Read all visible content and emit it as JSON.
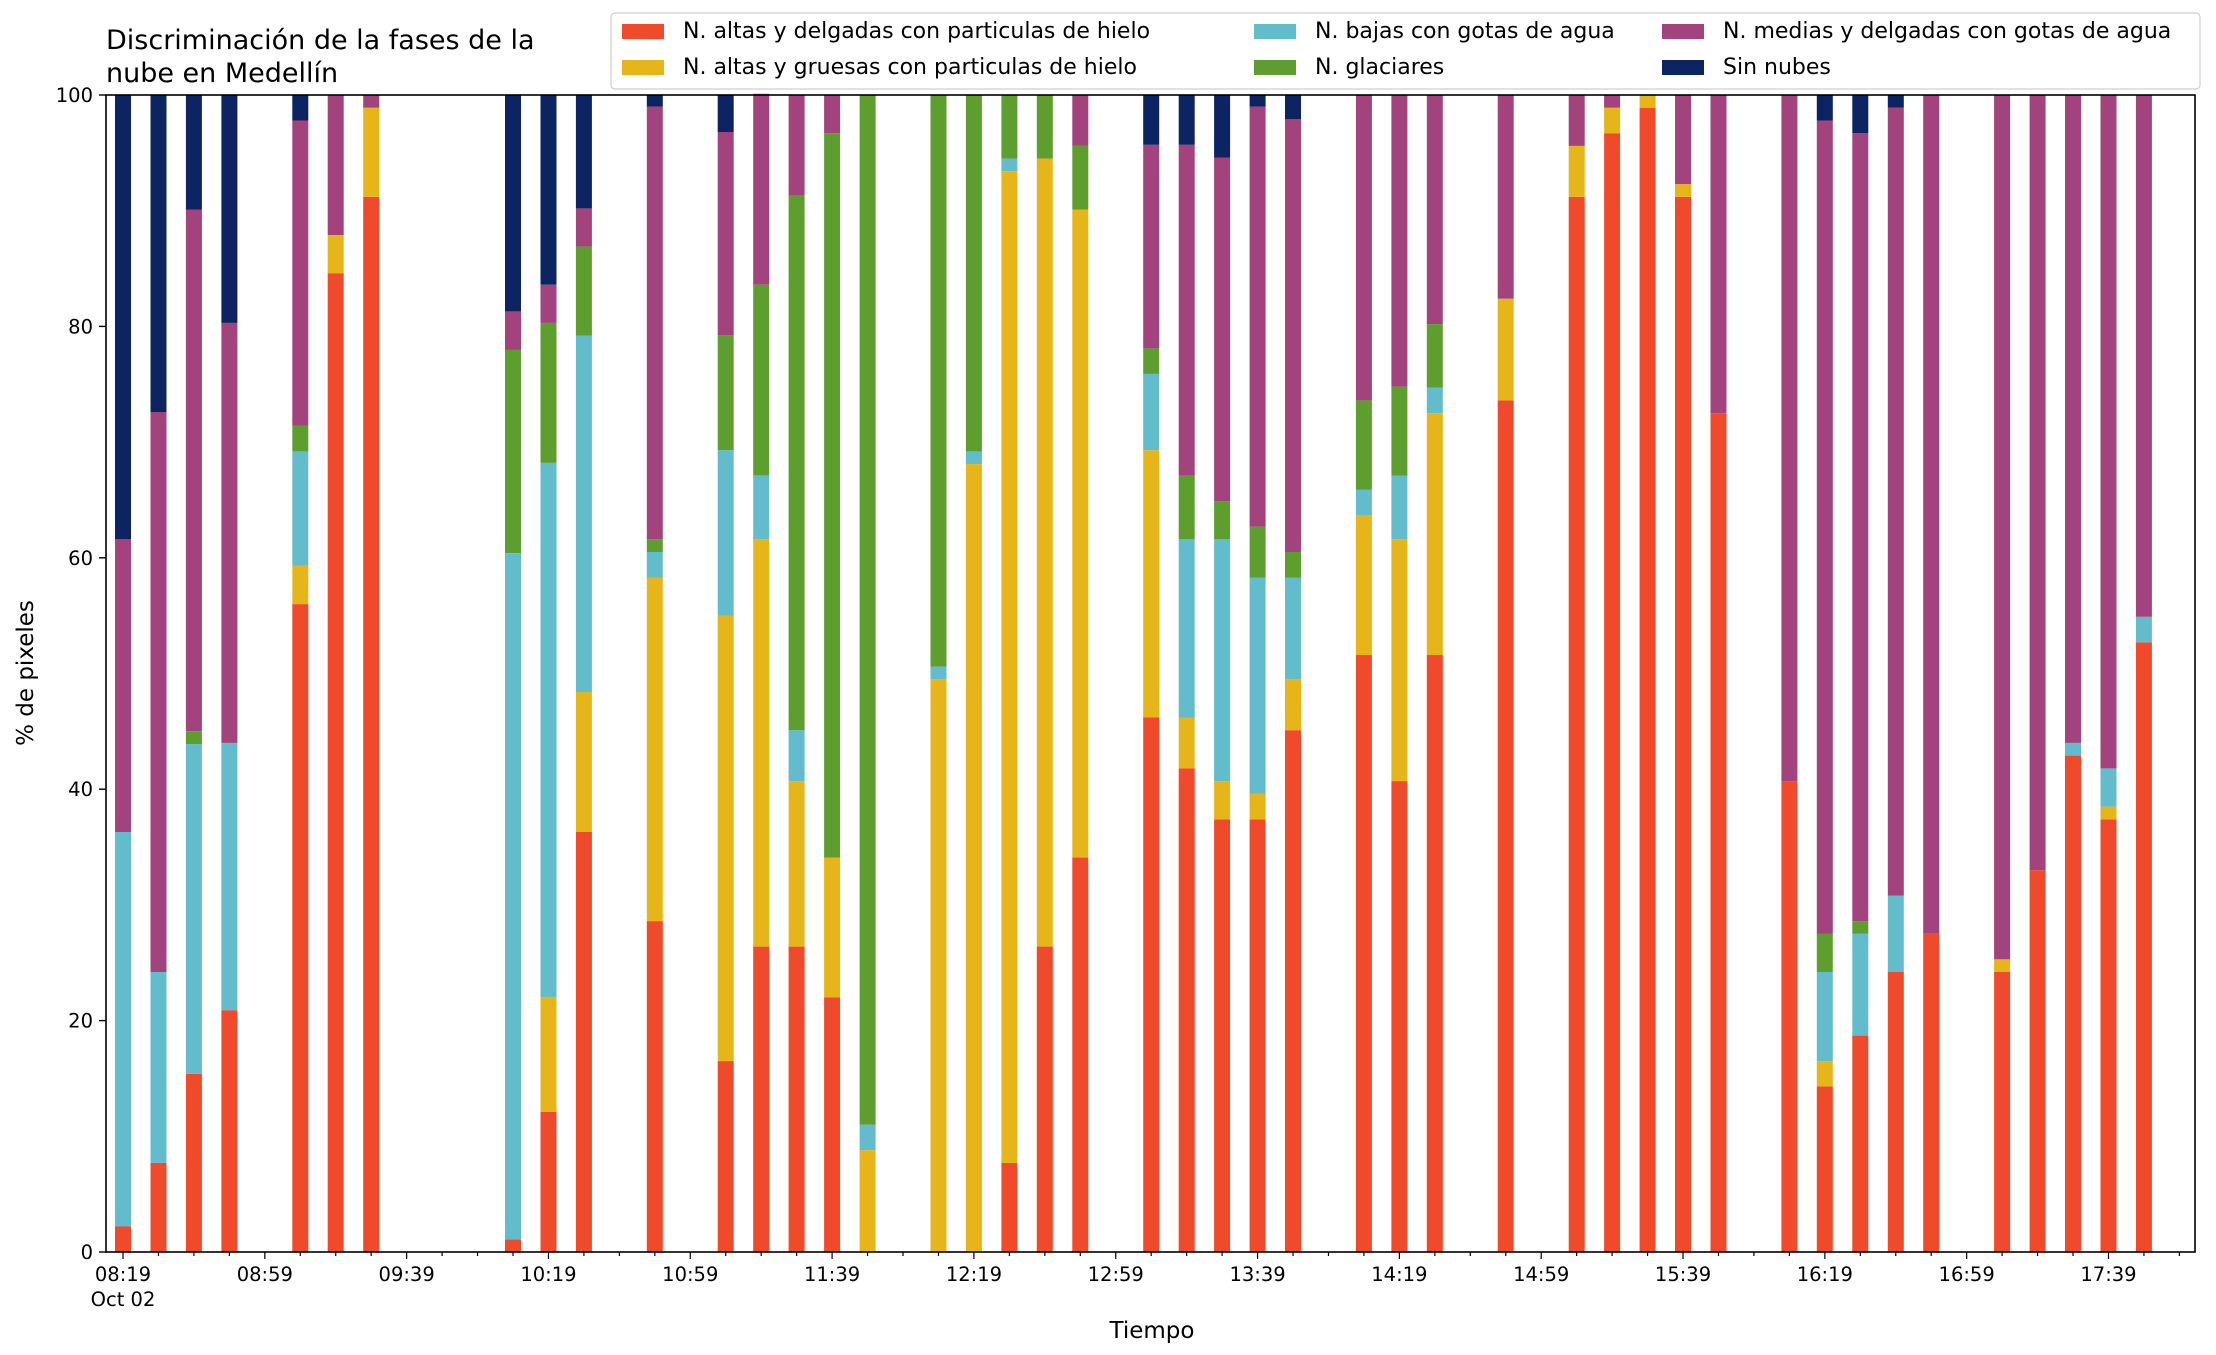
{
  "chart_data": {
    "type": "bar",
    "stacked": true,
    "title_lines": [
      "Discriminación de la fases de la",
      "nube en Medellín"
    ],
    "xlabel": "Tiempo",
    "ylabel": "% de pixeles",
    "ylim": [
      0,
      100
    ],
    "yticks": [
      0,
      20,
      40,
      60,
      80,
      100
    ],
    "x_range_minutes": [
      "08:19",
      "17:49"
    ],
    "x_tick_step_minutes": 10,
    "x_tick_labels": [
      "08:19",
      "08:59",
      "09:39",
      "10:19",
      "10:59",
      "11:39",
      "12:19",
      "12:59",
      "13:39",
      "14:19",
      "14:59",
      "15:39",
      "16:19",
      "16:59",
      "17:39"
    ],
    "x_date_label": "Oct 02",
    "grid": false,
    "legend_position": "top-right",
    "series": [
      {
        "name": "N. altas y delgadas con particulas de hielo",
        "color": "#ee4a2b"
      },
      {
        "name": "N. altas y gruesas con particulas de hielo",
        "color": "#e5b51a"
      },
      {
        "name": "N. bajas con gotas de agua",
        "color": "#63bccb"
      },
      {
        "name": "N. glaciares",
        "color": "#5e9e2e"
      },
      {
        "name": "N. medias y delgadas con gotas de agua",
        "color": "#a2437e"
      },
      {
        "name": "Sin nubes",
        "color": "#0c2462"
      }
    ],
    "bars": [
      {
        "time": "08:19",
        "values": [
          2.2,
          0,
          34.1,
          0,
          25.3,
          38.4
        ]
      },
      {
        "time": "08:29",
        "values": [
          7.7,
          0,
          16.5,
          0,
          48.4,
          27.4
        ]
      },
      {
        "time": "08:39",
        "values": [
          15.4,
          0,
          28.5,
          1.1,
          45.1,
          9.9
        ]
      },
      {
        "time": "08:49",
        "values": [
          20.9,
          0,
          23.1,
          0,
          36.3,
          19.7
        ]
      },
      {
        "time": "09:09",
        "values": [
          56.0,
          3.3,
          9.9,
          2.2,
          26.4,
          2.2
        ]
      },
      {
        "time": "09:19",
        "values": [
          84.6,
          3.3,
          0,
          0,
          12.1,
          0
        ]
      },
      {
        "time": "09:29",
        "values": [
          91.2,
          7.7,
          0,
          0,
          1.1,
          0
        ]
      },
      {
        "time": "10:09",
        "values": [
          1.1,
          0,
          59.3,
          17.6,
          3.3,
          18.7
        ]
      },
      {
        "time": "10:19",
        "values": [
          12.1,
          9.9,
          46.2,
          12.1,
          3.3,
          16.4
        ]
      },
      {
        "time": "10:29",
        "values": [
          36.3,
          12.1,
          30.8,
          7.7,
          3.3,
          9.8
        ]
      },
      {
        "time": "10:49",
        "values": [
          28.6,
          29.7,
          2.2,
          1.1,
          37.4,
          1.0
        ]
      },
      {
        "time": "11:09",
        "values": [
          16.5,
          38.5,
          14.3,
          9.9,
          17.6,
          3.2
        ]
      },
      {
        "time": "11:19",
        "values": [
          26.4,
          35.2,
          5.5,
          16.5,
          16.5,
          0
        ]
      },
      {
        "time": "11:29",
        "values": [
          26.4,
          14.3,
          4.4,
          46.2,
          8.7,
          0
        ]
      },
      {
        "time": "11:39",
        "values": [
          22.0,
          12.1,
          0,
          62.6,
          3.3,
          0
        ]
      },
      {
        "time": "11:49",
        "values": [
          0,
          8.8,
          2.2,
          89.0,
          0,
          0
        ]
      },
      {
        "time": "12:09",
        "values": [
          0,
          49.5,
          1.1,
          49.4,
          0,
          0
        ]
      },
      {
        "time": "12:19",
        "values": [
          0,
          68.1,
          1.1,
          30.8,
          0,
          0
        ]
      },
      {
        "time": "12:29",
        "values": [
          7.7,
          85.7,
          1.1,
          5.5,
          0,
          0
        ]
      },
      {
        "time": "12:39",
        "values": [
          26.4,
          68.1,
          0,
          5.5,
          0,
          0
        ]
      },
      {
        "time": "12:49",
        "values": [
          34.1,
          56.0,
          0,
          5.5,
          4.4,
          0
        ]
      },
      {
        "time": "13:09",
        "values": [
          46.2,
          23.1,
          6.6,
          2.2,
          17.6,
          4.3
        ]
      },
      {
        "time": "13:19",
        "values": [
          41.8,
          4.4,
          15.4,
          5.5,
          28.6,
          4.3
        ]
      },
      {
        "time": "13:29",
        "values": [
          37.4,
          3.3,
          20.9,
          3.3,
          29.7,
          5.4
        ]
      },
      {
        "time": "13:39",
        "values": [
          37.4,
          2.2,
          18.7,
          4.4,
          36.3,
          1.0
        ]
      },
      {
        "time": "13:49",
        "values": [
          45.1,
          4.4,
          8.8,
          2.2,
          37.4,
          2.1
        ]
      },
      {
        "time": "14:09",
        "values": [
          51.6,
          12.1,
          2.2,
          7.7,
          26.4,
          0
        ]
      },
      {
        "time": "14:19",
        "values": [
          40.7,
          20.9,
          5.5,
          7.7,
          25.2,
          0
        ]
      },
      {
        "time": "14:29",
        "values": [
          51.6,
          20.9,
          2.2,
          5.5,
          19.8,
          0
        ]
      },
      {
        "time": "14:49",
        "values": [
          73.6,
          8.8,
          0,
          0,
          17.6,
          0
        ]
      },
      {
        "time": "15:09",
        "values": [
          91.2,
          4.4,
          0,
          0,
          4.4,
          0
        ]
      },
      {
        "time": "15:19",
        "values": [
          96.7,
          2.2,
          0,
          0,
          1.1,
          0
        ]
      },
      {
        "time": "15:29",
        "values": [
          98.9,
          1.1,
          0,
          0,
          0,
          0
        ]
      },
      {
        "time": "15:39",
        "values": [
          91.2,
          1.1,
          0,
          0,
          7.7,
          0
        ]
      },
      {
        "time": "15:49",
        "values": [
          72.5,
          0,
          0,
          0,
          27.5,
          0
        ]
      },
      {
        "time": "16:09",
        "values": [
          40.7,
          0,
          0,
          0,
          59.3,
          0
        ]
      },
      {
        "time": "16:19",
        "values": [
          14.3,
          2.2,
          7.7,
          3.3,
          70.3,
          2.2
        ]
      },
      {
        "time": "16:29",
        "values": [
          18.7,
          0,
          8.8,
          1.1,
          68.1,
          3.3
        ]
      },
      {
        "time": "16:39",
        "values": [
          24.2,
          0,
          6.6,
          0,
          68.1,
          1.1
        ]
      },
      {
        "time": "16:49",
        "values": [
          27.5,
          0,
          0,
          0,
          72.5,
          0
        ]
      },
      {
        "time": "17:09",
        "values": [
          24.2,
          1.1,
          0,
          0,
          74.7,
          0
        ]
      },
      {
        "time": "17:19",
        "values": [
          33.0,
          0,
          0,
          0,
          67.0,
          0
        ]
      },
      {
        "time": "17:29",
        "values": [
          42.9,
          0,
          1.1,
          0,
          56.0,
          0
        ]
      },
      {
        "time": "17:39",
        "values": [
          37.4,
          1.1,
          3.3,
          0,
          58.2,
          0
        ]
      },
      {
        "time": "17:49",
        "values": [
          52.7,
          0,
          2.2,
          0,
          45.1,
          0
        ]
      }
    ]
  }
}
